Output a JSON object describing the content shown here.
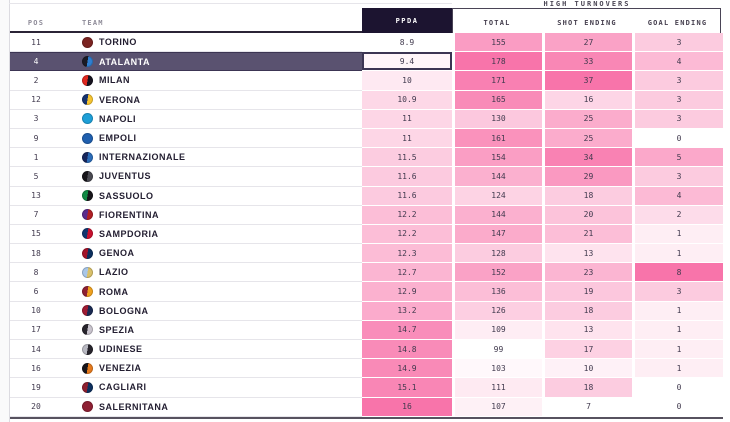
{
  "table": {
    "group_header": "HIGH TURNOVERS",
    "col_pos": "POS",
    "col_team": "TEAM",
    "col_ppda": "PPDA",
    "col_total": "TOTAL",
    "col_shot": "SHOT ENDING",
    "col_goal": "GOAL ENDING"
  },
  "chart_data": {
    "type": "table",
    "title": "HIGH TURNOVERS",
    "columns": [
      "POS",
      "TEAM",
      "PPDA",
      "TOTAL",
      "SHOT ENDING",
      "GOAL ENDING"
    ],
    "rows": [
      [
        11,
        "TORINO",
        8.9,
        155,
        27,
        3
      ],
      [
        4,
        "ATALANTA",
        9.4,
        178,
        33,
        4
      ],
      [
        2,
        "MILAN",
        10,
        171,
        37,
        3
      ],
      [
        12,
        "VERONA",
        10.9,
        165,
        16,
        3
      ],
      [
        3,
        "NAPOLI",
        11,
        130,
        25,
        3
      ],
      [
        9,
        "EMPOLI",
        11,
        161,
        25,
        0
      ],
      [
        1,
        "INTERNAZIONALE",
        11.5,
        154,
        34,
        5
      ],
      [
        5,
        "JUVENTUS",
        11.6,
        144,
        29,
        3
      ],
      [
        13,
        "SASSUOLO",
        11.6,
        124,
        18,
        4
      ],
      [
        7,
        "FIORENTINA",
        12.2,
        144,
        20,
        2
      ],
      [
        15,
        "SAMPDORIA",
        12.2,
        147,
        21,
        1
      ],
      [
        18,
        "GENOA",
        12.3,
        128,
        13,
        1
      ],
      [
        8,
        "LAZIO",
        12.7,
        152,
        23,
        8
      ],
      [
        6,
        "ROMA",
        12.9,
        136,
        19,
        3
      ],
      [
        10,
        "BOLOGNA",
        13.2,
        126,
        18,
        1
      ],
      [
        17,
        "SPEZIA",
        14.7,
        109,
        13,
        1
      ],
      [
        14,
        "UDINESE",
        14.8,
        99,
        17,
        1
      ],
      [
        16,
        "VENEZIA",
        14.9,
        103,
        10,
        1
      ],
      [
        19,
        "CAGLIARI",
        15.1,
        111,
        18,
        0
      ],
      [
        20,
        "SALERNITANA",
        16,
        107,
        7,
        0
      ]
    ],
    "heatmap_ranges": {
      "ppda": [
        8.9,
        16
      ],
      "total": [
        99,
        178
      ],
      "shot_ending": [
        7,
        37
      ],
      "goal_ending": [
        0,
        8
      ]
    },
    "selected_team": "ATALANTA",
    "legend_position": "none",
    "grid": false
  },
  "teams_meta": [
    {
      "crest": [
        "#7b2321",
        "#7b2321"
      ]
    },
    {
      "crest": [
        "#1b1b25",
        "#2f7fd1"
      ]
    },
    {
      "crest": [
        "#e0281f",
        "#16131f"
      ]
    },
    {
      "crest": [
        "#16336e",
        "#f6c431"
      ]
    },
    {
      "crest": [
        "#1e9fd7",
        "#1e9fd7"
      ]
    },
    {
      "crest": [
        "#1f5fae",
        "#1f5fae"
      ]
    },
    {
      "crest": [
        "#16265c",
        "#2b6cb8"
      ]
    },
    {
      "crest": [
        "#17151a",
        "#4a4a52"
      ]
    },
    {
      "crest": [
        "#108a44",
        "#17151a"
      ]
    },
    {
      "crest": [
        "#5a2b8c",
        "#b01f24"
      ]
    },
    {
      "crest": [
        "#10366f",
        "#c8102e"
      ]
    },
    {
      "crest": [
        "#a31228",
        "#0c2f5e"
      ]
    },
    {
      "crest": [
        "#a8c6e8",
        "#d9c06a"
      ]
    },
    {
      "crest": [
        "#8e2033",
        "#f0a11e"
      ]
    },
    {
      "crest": [
        "#9e1b32",
        "#1a2a52"
      ]
    },
    {
      "crest": [
        "#27242c",
        "#c9c4ce"
      ]
    },
    {
      "crest": [
        "#b9b9c2",
        "#27242c"
      ]
    },
    {
      "crest": [
        "#17151a",
        "#e57a1e"
      ]
    },
    {
      "crest": [
        "#8e1f2f",
        "#0c2f5e"
      ]
    },
    {
      "crest": [
        "#8e2033",
        "#8e2033"
      ]
    }
  ],
  "colors": {
    "heat_max": "#f874aa",
    "ppda_header_bg": "#1c1430",
    "selected_row_bg": "#5a5270",
    "selected_row_border": "#3c3553",
    "header_rule": "#2b2436",
    "value_text": "#413a4e"
  }
}
